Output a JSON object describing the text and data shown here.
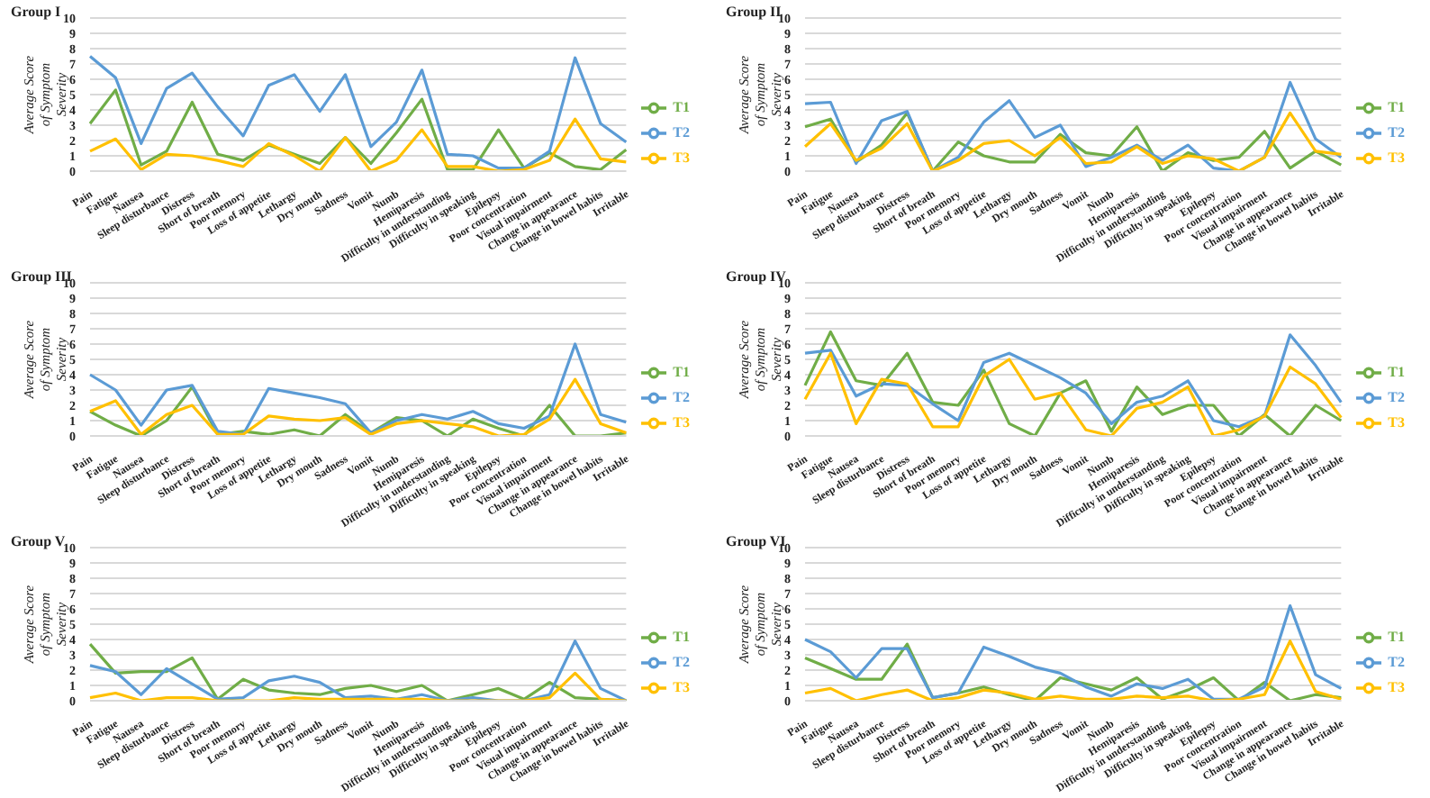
{
  "chart_data": [
    {
      "type": "line",
      "title": "Group I",
      "ylabel": "Average Score of Symptom Severity",
      "categories": [
        "Pain",
        "Fatigue",
        "Nausea",
        "Sleep disturbance",
        "Distress",
        "Short of breath",
        "Poor memory",
        "Loss of appetite",
        "Lethargy",
        "Dry mouth",
        "Sadness",
        "Vomit",
        "Numb",
        "Hemiparesis",
        "Difficulty in understanding",
        "Difficulty in speaking",
        "Epilepsy",
        "Poor concentration",
        "Visual impairment",
        "Change in appearance",
        "Change in bowel habits",
        "Irritable"
      ],
      "ylim": [
        0,
        10
      ],
      "yticks": [
        0,
        1,
        2,
        3,
        4,
        5,
        6,
        7,
        8,
        9,
        10
      ],
      "grid": "y",
      "legend": "right",
      "marker": "none",
      "series": [
        {
          "name": "T1",
          "color": "#70ad47",
          "values": [
            3.1,
            5.3,
            0.4,
            1.3,
            4.5,
            1.1,
            0.7,
            1.7,
            1.1,
            0.5,
            2.2,
            0.5,
            2.5,
            4.7,
            0.1,
            0.1,
            2.7,
            0.2,
            1.2,
            0.3,
            0.1,
            1.4
          ]
        },
        {
          "name": "T2",
          "color": "#5b9bd5",
          "values": [
            7.5,
            6.1,
            1.8,
            5.4,
            6.4,
            4.2,
            2.3,
            5.6,
            6.3,
            3.9,
            6.3,
            1.6,
            3.2,
            6.6,
            1.1,
            1.0,
            0.2,
            0.2,
            1.3,
            7.4,
            3.1,
            1.9
          ]
        },
        {
          "name": "T3",
          "color": "#ffc000",
          "values": [
            1.3,
            2.1,
            0.1,
            1.1,
            1.0,
            0.7,
            0.3,
            1.8,
            1.0,
            0.0,
            2.2,
            0.0,
            0.7,
            2.7,
            0.3,
            0.3,
            0.0,
            0.1,
            0.7,
            3.4,
            0.8,
            0.6
          ]
        }
      ]
    },
    {
      "type": "line",
      "title": "Group II",
      "ylabel": "Average Score of Symptom Severity",
      "categories": [
        "Pain",
        "Fatigue",
        "Nausea",
        "Sleep disturbance",
        "Distress",
        "Short of breath",
        "Poor memory",
        "Loss of appetite",
        "Lethargy",
        "Dry mouth",
        "Sadness",
        "Vomit",
        "Numb",
        "Hemiparesis",
        "Difficulty in understanding",
        "Difficulty in speaking",
        "Epilepsy",
        "Poor concentration",
        "Visual impairment",
        "Change in appearance",
        "Change in bowel habits",
        "Irritable"
      ],
      "ylim": [
        0,
        10
      ],
      "yticks": [
        0,
        1,
        2,
        3,
        4,
        5,
        6,
        7,
        8,
        9,
        10
      ],
      "grid": "y",
      "legend": "right",
      "marker": "none",
      "series": [
        {
          "name": "T1",
          "color": "#70ad47",
          "values": [
            2.9,
            3.4,
            0.6,
            1.7,
            3.8,
            0.0,
            1.9,
            1.0,
            0.6,
            0.6,
            2.4,
            1.2,
            1.0,
            2.9,
            0.0,
            1.2,
            0.7,
            0.9,
            2.6,
            0.2,
            1.3,
            0.4
          ]
        },
        {
          "name": "T2",
          "color": "#5b9bd5",
          "values": [
            4.4,
            4.5,
            0.5,
            3.3,
            3.9,
            0.0,
            0.9,
            3.2,
            4.6,
            2.2,
            3.0,
            0.3,
            0.9,
            1.7,
            0.7,
            1.7,
            0.2,
            0.0,
            0.9,
            5.8,
            2.1,
            0.9
          ]
        },
        {
          "name": "T3",
          "color": "#ffc000",
          "values": [
            1.6,
            3.1,
            0.7,
            1.5,
            3.1,
            0.0,
            0.7,
            1.8,
            2.0,
            1.0,
            2.2,
            0.5,
            0.6,
            1.6,
            0.5,
            1.0,
            0.8,
            0.0,
            0.9,
            3.8,
            1.3,
            1.1
          ]
        }
      ]
    },
    {
      "type": "line",
      "title": "Group III",
      "ylabel": "Average Score of Symptom Severity",
      "categories": [
        "Pain",
        "Fatigue",
        "Nausea",
        "Sleep disturbance",
        "Distress",
        "Short of breath",
        "Poor memory",
        "Loss of appetite",
        "Lethargy",
        "Dry mouth",
        "Sadness",
        "Vomit",
        "Numb",
        "Hemiparesis",
        "Difficulty in understanding",
        "Difficulty in speaking",
        "Epilepsy",
        "Poor concentration",
        "Visual impairment",
        "Change in appearance",
        "Change in bowel habits",
        "Irritable"
      ],
      "ylim": [
        0,
        10
      ],
      "yticks": [
        0,
        1,
        2,
        3,
        4,
        5,
        6,
        7,
        8,
        9,
        10
      ],
      "grid": "y",
      "legend": "right",
      "marker": "none",
      "series": [
        {
          "name": "T1",
          "color": "#70ad47",
          "values": [
            1.6,
            0.7,
            0.0,
            1.0,
            3.2,
            0.1,
            0.3,
            0.1,
            0.4,
            0.0,
            1.4,
            0.2,
            1.2,
            1.0,
            0.0,
            1.1,
            0.5,
            0.0,
            2.0,
            0.0,
            0.0,
            0.2
          ]
        },
        {
          "name": "T2",
          "color": "#5b9bd5",
          "values": [
            4.0,
            3.0,
            0.7,
            3.0,
            3.3,
            0.3,
            0.1,
            3.1,
            2.8,
            2.5,
            2.1,
            0.2,
            1.0,
            1.4,
            1.1,
            1.6,
            0.8,
            0.5,
            1.3,
            6.0,
            1.4,
            0.9
          ]
        },
        {
          "name": "T3",
          "color": "#ffc000",
          "values": [
            1.6,
            2.3,
            0.1,
            1.4,
            2.0,
            0.1,
            0.1,
            1.3,
            1.1,
            1.0,
            1.2,
            0.1,
            0.8,
            1.0,
            0.8,
            0.6,
            0.0,
            0.1,
            1.1,
            3.7,
            0.8,
            0.2
          ]
        }
      ]
    },
    {
      "type": "line",
      "title": "Group IV",
      "ylabel": "Average Score of Symptom Severity",
      "categories": [
        "Pain",
        "Fatigue",
        "Nausea",
        "Sleep disturbance",
        "Distress",
        "Short of breath",
        "Poor memory",
        "Loss of appetite",
        "Lethargy",
        "Dry mouth",
        "Sadness",
        "Vomit",
        "Numb",
        "Hemiparesis",
        "Difficulty in understanding",
        "Difficulty in speaking",
        "Epilepsy",
        "Poor concentration",
        "Visual impairment",
        "Change in appearance",
        "Change in bowel habits",
        "Irritable"
      ],
      "ylim": [
        0,
        10
      ],
      "yticks": [
        0,
        1,
        2,
        3,
        4,
        5,
        6,
        7,
        8,
        9,
        10
      ],
      "grid": "y",
      "legend": "right",
      "marker": "none",
      "series": [
        {
          "name": "T1",
          "color": "#70ad47",
          "values": [
            3.3,
            6.8,
            3.6,
            3.3,
            5.4,
            2.2,
            2.0,
            4.3,
            0.8,
            0.0,
            2.8,
            3.6,
            0.3,
            3.2,
            1.4,
            2.0,
            2.0,
            0.0,
            1.4,
            0.0,
            2.0,
            1.0
          ]
        },
        {
          "name": "T2",
          "color": "#5b9bd5",
          "values": [
            5.4,
            5.6,
            2.6,
            3.4,
            3.3,
            2.1,
            1.0,
            4.8,
            5.4,
            4.6,
            3.8,
            2.8,
            0.8,
            2.2,
            2.6,
            3.6,
            1.0,
            0.6,
            1.3,
            6.6,
            4.6,
            2.2
          ]
        },
        {
          "name": "T3",
          "color": "#ffc000",
          "values": [
            2.4,
            5.4,
            0.8,
            3.7,
            3.4,
            0.6,
            0.6,
            3.9,
            5.0,
            2.4,
            2.8,
            0.4,
            0.0,
            1.8,
            2.2,
            3.2,
            0.0,
            0.4,
            1.3,
            4.5,
            3.4,
            1.2
          ]
        }
      ]
    },
    {
      "type": "line",
      "title": "Group V",
      "ylabel": "Average Score of Symptom Severity",
      "categories": [
        "Pain",
        "Fatigue",
        "Nausea",
        "Sleep disturbance",
        "Distress",
        "Short of breath",
        "Poor memory",
        "Loss of appetite",
        "Lethargy",
        "Dry mouth",
        "Sadness",
        "Vomit",
        "Numb",
        "Hemiparesis",
        "Difficulty in understanding",
        "Difficulty in speaking",
        "Epilepsy",
        "Poor concentration",
        "Visual impairment",
        "Change in appearance",
        "Change in bowel habits",
        "Irritable"
      ],
      "ylim": [
        0,
        10
      ],
      "yticks": [
        0,
        1,
        2,
        3,
        4,
        5,
        6,
        7,
        8,
        9,
        10
      ],
      "grid": "y",
      "legend": "right",
      "marker": "none",
      "series": [
        {
          "name": "T1",
          "color": "#70ad47",
          "values": [
            3.7,
            1.8,
            1.9,
            1.9,
            2.8,
            0.1,
            1.4,
            0.7,
            0.5,
            0.4,
            0.8,
            1.0,
            0.6,
            1.0,
            0.0,
            0.4,
            0.8,
            0.1,
            1.2,
            0.2,
            0.1,
            0.0
          ]
        },
        {
          "name": "T2",
          "color": "#5b9bd5",
          "values": [
            2.3,
            1.9,
            0.4,
            2.1,
            1.1,
            0.1,
            0.2,
            1.3,
            1.6,
            1.2,
            0.2,
            0.3,
            0.1,
            0.4,
            0.0,
            0.2,
            0.0,
            0.0,
            0.4,
            3.9,
            0.8,
            0.0
          ]
        },
        {
          "name": "T3",
          "color": "#ffc000",
          "values": [
            0.2,
            0.5,
            0.0,
            0.2,
            0.2,
            0.0,
            0.0,
            0.0,
            0.2,
            0.1,
            0.1,
            0.1,
            0.1,
            0.1,
            0.0,
            0.0,
            0.0,
            0.0,
            0.2,
            1.8,
            0.1,
            0.0
          ]
        }
      ]
    },
    {
      "type": "line",
      "title": "Group VI",
      "ylabel": "Average Score of Symptom Severity",
      "categories": [
        "Pain",
        "Fatigue",
        "Nausea",
        "Sleep disturbance",
        "Distress",
        "Short of breath",
        "Poor memory",
        "Loss of appetite",
        "Lethargy",
        "Dry mouth",
        "Sadness",
        "Vomit",
        "Numb",
        "Hemiparesis",
        "Difficulty in understanding",
        "Difficulty in speaking",
        "Epilepsy",
        "Poor concentration",
        "Visual impairment",
        "Change in appearance",
        "Change in bowel habits",
        "Irritable"
      ],
      "ylim": [
        0,
        10
      ],
      "yticks": [
        0,
        1,
        2,
        3,
        4,
        5,
        6,
        7,
        8,
        9,
        10
      ],
      "grid": "y",
      "legend": "right",
      "marker": "none",
      "series": [
        {
          "name": "T1",
          "color": "#70ad47",
          "values": [
            2.8,
            2.1,
            1.4,
            1.4,
            3.7,
            0.2,
            0.5,
            0.9,
            0.4,
            0.0,
            1.5,
            1.1,
            0.7,
            1.5,
            0.1,
            0.7,
            1.5,
            0.0,
            1.2,
            0.0,
            0.4,
            0.2
          ]
        },
        {
          "name": "T2",
          "color": "#5b9bd5",
          "values": [
            4.0,
            3.2,
            1.5,
            3.4,
            3.4,
            0.2,
            0.5,
            3.5,
            2.9,
            2.2,
            1.8,
            0.9,
            0.3,
            1.1,
            0.8,
            1.4,
            0.1,
            0.1,
            0.9,
            6.2,
            1.7,
            0.8
          ]
        },
        {
          "name": "T3",
          "color": "#ffc000",
          "values": [
            0.5,
            0.8,
            0.0,
            0.4,
            0.7,
            0.0,
            0.2,
            0.7,
            0.5,
            0.1,
            0.3,
            0.1,
            0.1,
            0.3,
            0.2,
            0.3,
            0.0,
            0.1,
            0.4,
            3.9,
            0.6,
            0.1
          ]
        }
      ]
    }
  ]
}
